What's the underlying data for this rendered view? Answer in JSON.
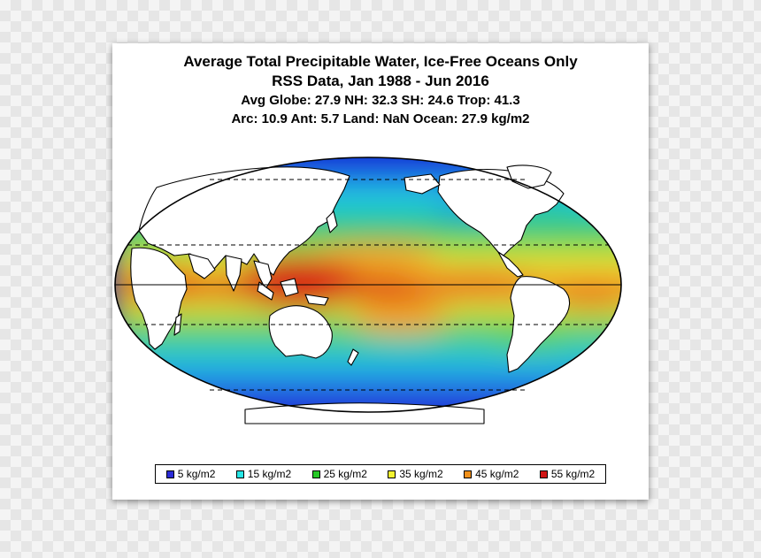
{
  "title": "Average Total Precipitable Water, Ice-Free Oceans Only",
  "subtitle": "RSS Data, Jan 1988 - Jun 2016",
  "stats_line1": "Avg Globe: 27.9  NH: 32.3  SH: 24.6  Trop: 41.3",
  "stats_line2": "Arc: 10.9  Ant: 5.7  Land: NaN Ocean: 27.9 kg/m2",
  "legend": [
    {
      "label": "5 kg/m2",
      "color": "#2b2bd6"
    },
    {
      "label": "15 kg/m2",
      "color": "#27e6e6"
    },
    {
      "label": "25 kg/m2",
      "color": "#27c927"
    },
    {
      "label": "35 kg/m2",
      "color": "#f2f230"
    },
    {
      "label": "45 kg/m2",
      "color": "#f0901a"
    },
    {
      "label": "55 kg/m2",
      "color": "#d01515"
    }
  ],
  "map": {
    "projection": "mollweide",
    "center_longitude": 180,
    "reference_lines": [
      "equator",
      "tropic-of-cancer",
      "tropic-of-capricorn",
      "arctic-circle",
      "antarctic-circle"
    ]
  }
}
